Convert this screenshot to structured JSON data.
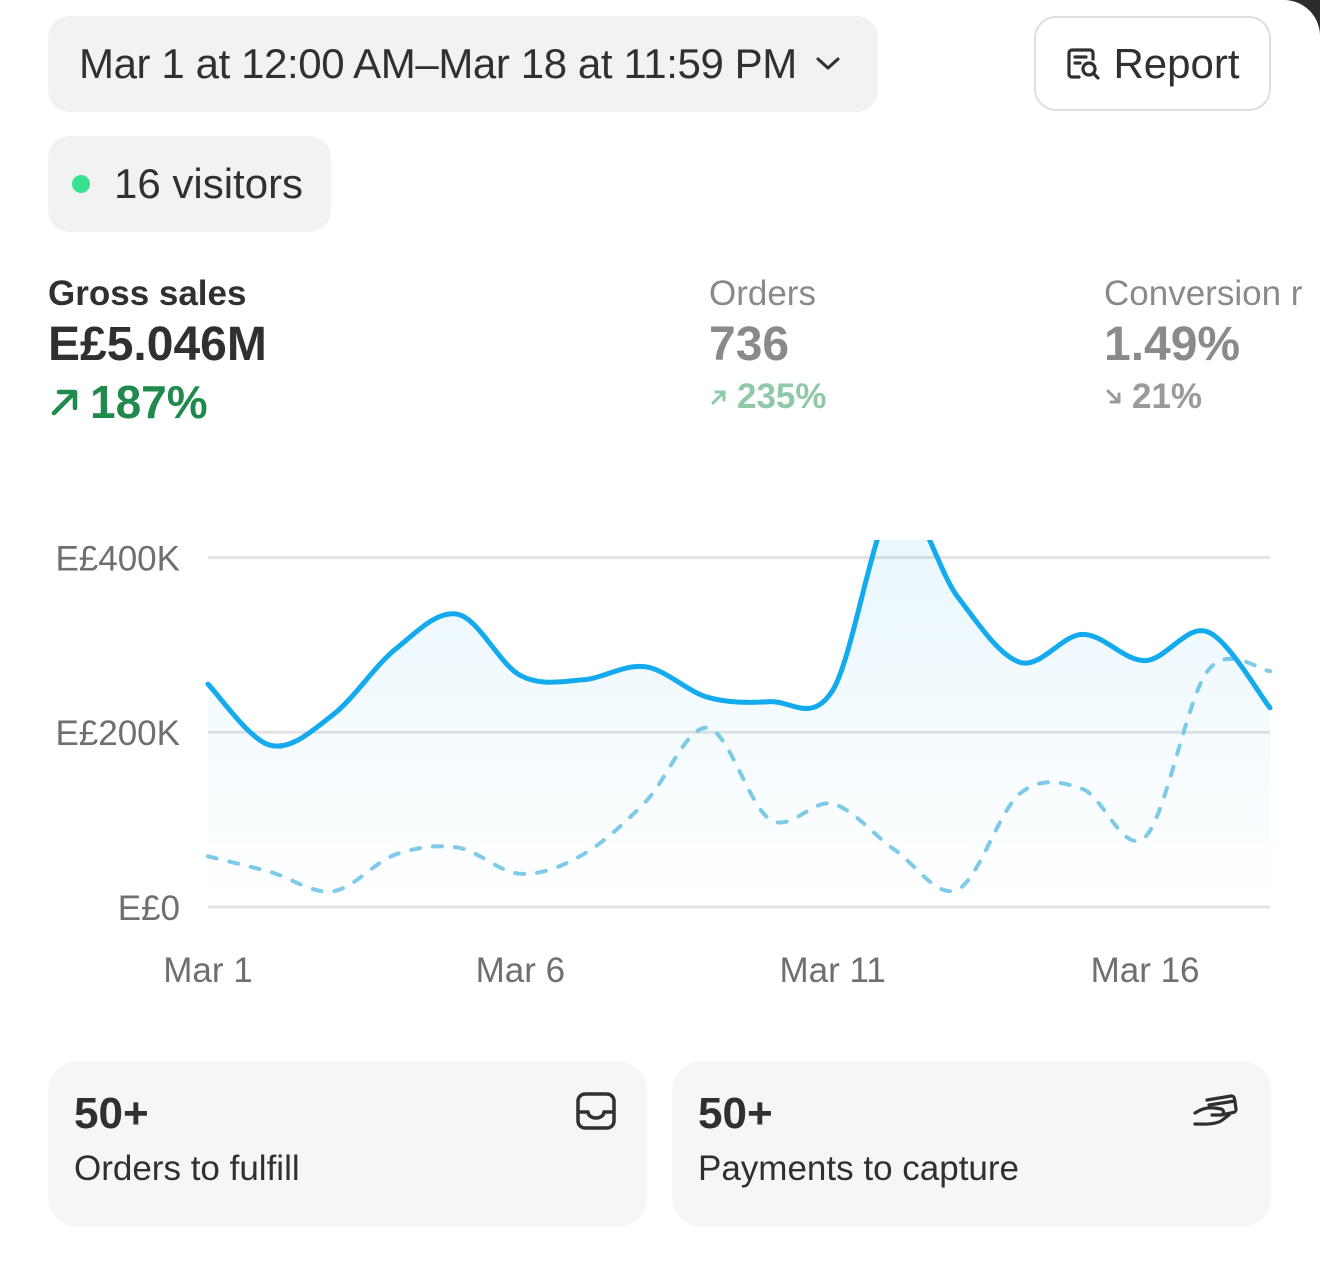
{
  "header": {
    "date_range": "Mar 1 at 12:00 AM–Mar 18 at 11:59 PM",
    "date_icon": "chevron-down-icon",
    "report_label": "Report",
    "report_icon": "report-search-icon"
  },
  "visitors": {
    "label": "16 visitors",
    "status_color": "#36e08f"
  },
  "metrics": [
    {
      "label": "Gross sales",
      "value": "E£5.046M",
      "delta": "187%",
      "direction": "up"
    },
    {
      "label": "Orders",
      "value": "736",
      "delta": "235%",
      "direction": "up"
    },
    {
      "label": "Conversion r",
      "value": "1.49%",
      "delta": "21%",
      "direction": "down"
    }
  ],
  "chart_data": {
    "type": "line",
    "x": [
      "Mar 1",
      "Mar 2",
      "Mar 3",
      "Mar 4",
      "Mar 5",
      "Mar 6",
      "Mar 7",
      "Mar 8",
      "Mar 9",
      "Mar 10",
      "Mar 11",
      "Mar 12",
      "Mar 13",
      "Mar 14",
      "Mar 15",
      "Mar 16",
      "Mar 17",
      "Mar 18"
    ],
    "x_tick_labels": [
      "Mar 1",
      "Mar 6",
      "Mar 11",
      "Mar 16"
    ],
    "y_tick_labels": [
      "E£0",
      "E£200K",
      "E£400K"
    ],
    "y_ticks": [
      0,
      200000,
      400000
    ],
    "ylim": [
      0,
      420000
    ],
    "series": [
      {
        "style": "solid",
        "color": "#13aaee",
        "values": [
          255000,
          185000,
          220000,
          295000,
          335000,
          265000,
          260000,
          275000,
          240000,
          235000,
          248000,
          465000,
          355000,
          280000,
          312000,
          282000,
          315000,
          228000
        ]
      },
      {
        "style": "dashed",
        "color": "#7fcbe8",
        "values": [
          58000,
          40000,
          18000,
          60000,
          68000,
          38000,
          60000,
          120000,
          205000,
          100000,
          118000,
          65000,
          20000,
          130000,
          135000,
          80000,
          270000,
          270000
        ]
      }
    ],
    "grid": true,
    "legend": "none"
  },
  "tiles": [
    {
      "count": "50+",
      "caption": "Orders to fulfill",
      "icon": "inbox-icon"
    },
    {
      "count": "50+",
      "caption": "Payments to capture",
      "icon": "hand-card-icon"
    }
  ]
}
